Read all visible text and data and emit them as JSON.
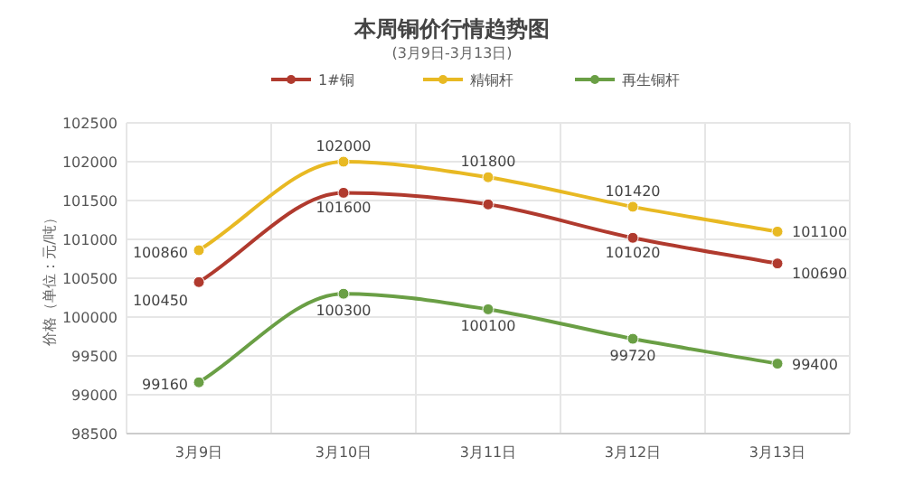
{
  "chart_data": {
    "type": "line",
    "title": "本周铜价行情趋势图",
    "subtitle": "(3月9日-3月13日)",
    "ylabel": "价格（单位：元/吨）",
    "categories": [
      "3月9日",
      "3月10日",
      "3月11日",
      "3月12日",
      "3月13日"
    ],
    "series": [
      {
        "name": "1#铜",
        "color": "#b03a2e",
        "values": [
          100450,
          101600,
          101450,
          101020,
          100690
        ],
        "value_labels": [
          "100450",
          "101600",
          null,
          "101020",
          "100690"
        ]
      },
      {
        "name": "精铜杆",
        "color": "#e8b923",
        "values": [
          100860,
          102000,
          101800,
          101420,
          101100
        ],
        "value_labels": [
          "100860",
          "102000",
          "101800",
          "101420",
          "101100"
        ]
      },
      {
        "name": "再生铜杆",
        "color": "#6a9f45",
        "values": [
          99160,
          100300,
          100100,
          99720,
          99400
        ],
        "value_labels": [
          "99160",
          "100300",
          "100100",
          "99720",
          "99400"
        ]
      }
    ],
    "ylim": [
      98500,
      102500
    ],
    "yticks": [
      98500,
      99000,
      99500,
      100000,
      100500,
      101000,
      101500,
      102000,
      102500
    ],
    "grid": true,
    "legend": "top",
    "marker": "circle",
    "line_style": "solid"
  }
}
